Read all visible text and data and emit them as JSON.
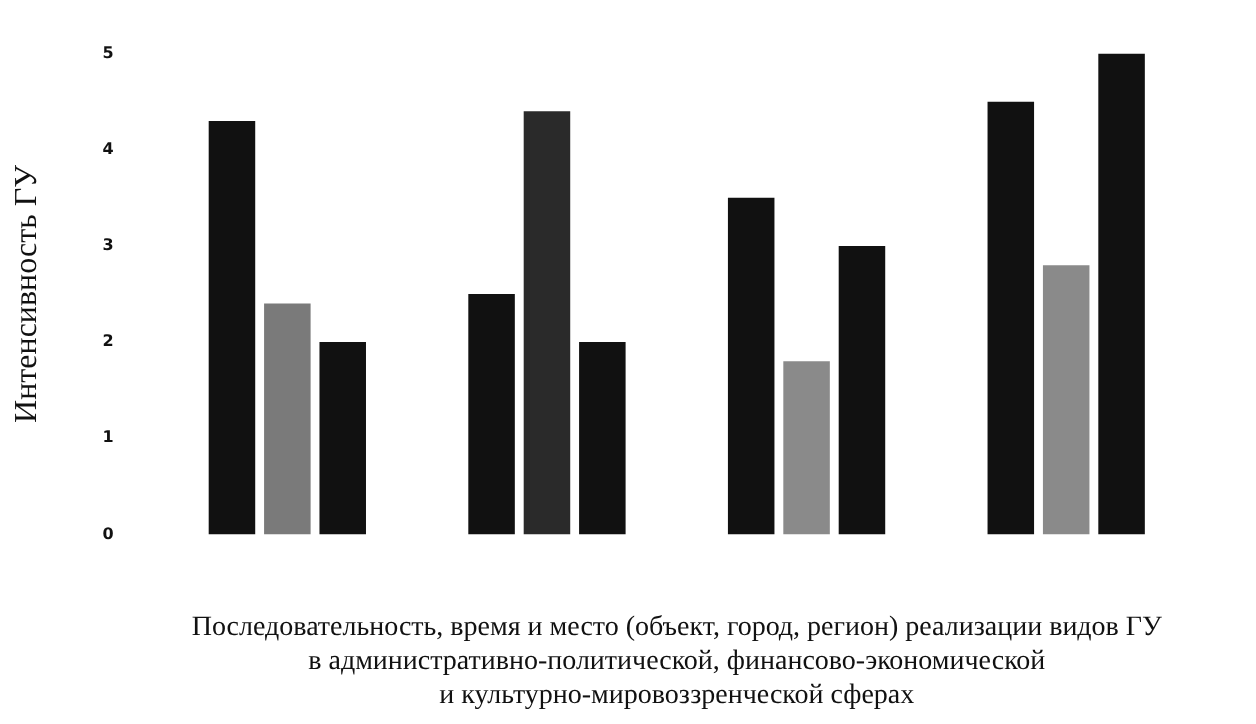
{
  "chart_data": {
    "type": "bar",
    "ylabel": "Интенсивность ГУ",
    "xlabel": "Последовательность, время и место (объект, город, регион) реализации видов ГУ\nв административно-политической, финансово-экономической\nи культурно-мировоззренческой сферах",
    "categories": [
      null,
      null,
      null,
      null
    ],
    "series": [
      {
        "color": "#111111",
        "values": [
          4.3,
          2.5,
          3.5,
          4.5
        ]
      },
      {
        "colors": [
          "#7a7a7a",
          "#2a2a2a",
          "#8a8a8a",
          "#8a8a8a"
        ],
        "values": [
          2.4,
          4.4,
          1.8,
          2.8
        ]
      },
      {
        "color": "#111111",
        "values": [
          2.0,
          2.0,
          3.0,
          5.0
        ]
      }
    ],
    "ylim": [
      0,
      5
    ],
    "yticks": [
      0,
      1,
      2,
      3,
      4,
      5
    ],
    "grid": false,
    "legend": false
  }
}
